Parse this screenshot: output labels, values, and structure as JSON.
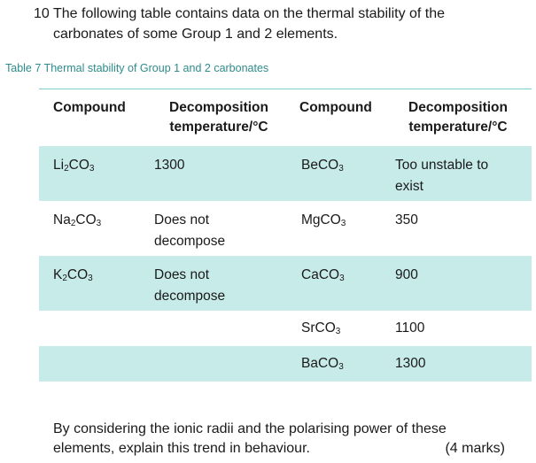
{
  "question": {
    "number": "10",
    "line1": "The following table contains data on the thermal stability of the",
    "line2": "carbonates of some Group 1 and 2 elements."
  },
  "caption": "Table 7 Thermal stability of Group 1 and 2 carbonates",
  "table": {
    "headers": {
      "compound1": "Compound",
      "decomp1_line1": "Decomposition",
      "decomp1_line2": "temperature/°C",
      "compound2": "Compound",
      "decomp2_line1": "Decomposition",
      "decomp2_line2": "temperature/°C"
    },
    "rows": [
      {
        "g1_base": "Li",
        "g1_sub2": "2",
        "g1_mid": "CO",
        "g1_sub3": "3",
        "g1_temp_a": "1300",
        "g1_temp_b": "",
        "g2_base": "BeCO",
        "g2_sub3": "3",
        "g2_temp_a": "Too unstable to",
        "g2_temp_b": "exist"
      },
      {
        "g1_base": "Na",
        "g1_sub2": "2",
        "g1_mid": "CO",
        "g1_sub3": "3",
        "g1_temp_a": "Does not",
        "g1_temp_b": "decompose",
        "g2_base": "MgCO",
        "g2_sub3": "3",
        "g2_temp_a": "350",
        "g2_temp_b": ""
      },
      {
        "g1_base": "K",
        "g1_sub2": "2",
        "g1_mid": "CO",
        "g1_sub3": "3",
        "g1_temp_a": "Does not",
        "g1_temp_b": "decompose",
        "g2_base": "CaCO",
        "g2_sub3": "3",
        "g2_temp_a": "900",
        "g2_temp_b": ""
      },
      {
        "g1_base": "",
        "g1_sub2": "",
        "g1_mid": "",
        "g1_sub3": "",
        "g1_temp_a": "",
        "g1_temp_b": "",
        "g2_base": "SrCO",
        "g2_sub3": "3",
        "g2_temp_a": "1100",
        "g2_temp_b": ""
      },
      {
        "g1_base": "",
        "g1_sub2": "",
        "g1_mid": "",
        "g1_sub3": "",
        "g1_temp_a": "",
        "g1_temp_b": "",
        "g2_base": "BaCO",
        "g2_sub3": "3",
        "g2_temp_a": "1300",
        "g2_temp_b": ""
      }
    ]
  },
  "footer": {
    "line1": "By considering the ionic radii and the polarising power of these",
    "line2": "elements, explain this trend in behaviour.",
    "marks": "(4 marks)"
  }
}
